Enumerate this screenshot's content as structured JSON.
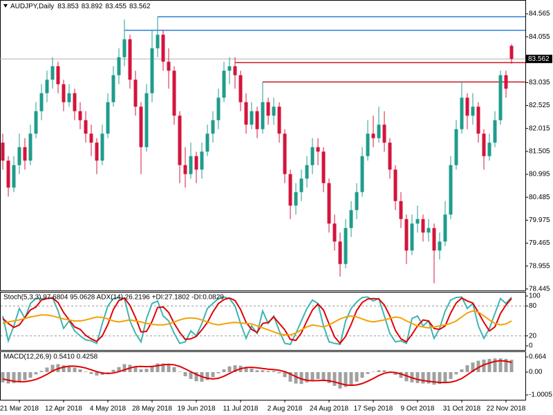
{
  "chart_data": [
    {
      "type": "candlestick",
      "title": "AUDJPY,Daily",
      "categories": [
        null,
        null,
        null,
        "21 Mar 2018",
        null,
        null,
        null,
        null,
        null,
        null,
        null,
        "12 Apr 2018",
        null,
        null,
        null,
        null,
        null,
        null,
        null,
        "4 May 2018",
        null,
        null,
        null,
        null,
        null,
        null,
        null,
        "28 May 2018",
        null,
        null,
        null,
        null,
        null,
        null,
        null,
        "19 Jun 2018",
        null,
        null,
        null,
        null,
        null,
        null,
        null,
        "11 Jul 2018",
        null,
        null,
        null,
        null,
        null,
        null,
        null,
        "2 Aug 2018",
        null,
        null,
        null,
        null,
        null,
        null,
        null,
        "24 Aug 2018",
        null,
        null,
        null,
        null,
        null,
        null,
        null,
        "17 Sep 2018",
        null,
        null,
        null,
        null,
        null,
        null,
        null,
        "9 Oct 2018",
        null,
        null,
        null,
        null,
        null,
        null,
        null,
        "31 Oct 2018",
        null,
        null,
        null,
        null,
        null,
        null,
        null,
        "22 Nov 2018",
        null
      ],
      "open": [
        81.7,
        81.3,
        80.7,
        81.2,
        81.6,
        81.3,
        81.9,
        82.4,
        82.8,
        83.1,
        83.4,
        83.0,
        82.6,
        82.8,
        82.4,
        82.2,
        81.9,
        81.7,
        81.3,
        81.9,
        82.6,
        83.2,
        83.6,
        84.0,
        83.1,
        82.5,
        81.6,
        82.8,
        83.8,
        84.1,
        83.5,
        83.3,
        82.3,
        81.2,
        81.0,
        81.4,
        81.1,
        81.5,
        81.9,
        82.2,
        82.7,
        83.3,
        83.4,
        83.2,
        82.6,
        82.1,
        82.4,
        82.0,
        82.6,
        82.3,
        82.5,
        81.9,
        81.0,
        80.3,
        80.6,
        80.9,
        81.2,
        81.6,
        81.5,
        80.8,
        79.9,
        79.5,
        79.0,
        79.8,
        80.2,
        80.6,
        81.4,
        81.9,
        81.8,
        82.1,
        81.7,
        81.1,
        80.4,
        80.0,
        79.3,
        79.9,
        80.0,
        79.7,
        79.8,
        79.3,
        79.5,
        80.1,
        81.2,
        82.0,
        82.7,
        82.3,
        82.5,
        81.9,
        81.4,
        81.7,
        82.2,
        83.2,
        83.853
      ],
      "high": [
        81.9,
        81.4,
        81.4,
        81.9,
        81.8,
        82.1,
        82.6,
        83.0,
        83.3,
        83.6,
        83.5,
        83.1,
        83.0,
        82.9,
        82.6,
        82.4,
        82.1,
        81.8,
        82.1,
        82.8,
        83.4,
        83.8,
        84.44,
        84.1,
        83.3,
        82.6,
        83.0,
        84.2,
        84.5,
        84.2,
        83.8,
        83.4,
        82.4,
        81.6,
        81.7,
        81.5,
        81.7,
        82.1,
        82.4,
        82.9,
        83.5,
        83.6,
        83.6,
        83.3,
        82.8,
        82.6,
        82.5,
        83.05,
        82.7,
        82.7,
        82.6,
        82.0,
        81.1,
        80.8,
        81.1,
        81.4,
        81.8,
        81.8,
        81.6,
        80.9,
        80.1,
        79.7,
        80.0,
        80.4,
        80.8,
        81.6,
        82.2,
        82.3,
        82.5,
        82.4,
        81.8,
        81.2,
        80.6,
        80.1,
        80.1,
        80.3,
        80.1,
        80.0,
        79.9,
        79.7,
        80.4,
        81.4,
        82.2,
        83.05,
        82.8,
        82.8,
        82.6,
        82.0,
        81.9,
        82.4,
        83.3,
        83.3,
        83.892
      ],
      "low": [
        81.1,
        80.5,
        80.6,
        81.0,
        81.1,
        81.2,
        81.8,
        82.2,
        82.6,
        82.9,
        82.8,
        82.4,
        82.5,
        82.2,
        82.0,
        81.7,
        81.4,
        81.0,
        81.2,
        81.8,
        82.5,
        83.0,
        83.4,
        82.9,
        82.3,
        81.0,
        81.5,
        82.6,
        83.6,
        83.3,
        82.9,
        82.1,
        80.8,
        80.7,
        80.9,
        80.8,
        80.9,
        81.4,
        81.7,
        82.0,
        82.6,
        83.0,
        82.9,
        82.4,
        81.9,
        82.0,
        81.8,
        81.9,
        82.1,
        82.1,
        81.7,
        80.8,
        80.0,
        80.1,
        80.4,
        80.7,
        81.0,
        81.2,
        80.6,
        79.7,
        79.3,
        78.72,
        78.9,
        79.6,
        80.0,
        80.5,
        81.3,
        81.6,
        81.7,
        81.5,
        80.9,
        80.2,
        79.8,
        79.0,
        79.2,
        79.7,
        79.5,
        79.5,
        78.57,
        79.1,
        79.4,
        80.0,
        81.1,
        81.9,
        82.0,
        82.1,
        81.7,
        81.1,
        81.3,
        81.6,
        82.1,
        82.7,
        83.455
      ],
      "close": [
        81.3,
        80.7,
        81.2,
        81.6,
        81.3,
        81.9,
        82.4,
        82.8,
        83.1,
        83.4,
        83.0,
        82.6,
        82.8,
        82.4,
        82.2,
        81.9,
        81.7,
        81.3,
        81.9,
        82.6,
        83.2,
        83.6,
        84.0,
        83.1,
        82.5,
        81.6,
        82.8,
        83.8,
        84.1,
        83.5,
        83.3,
        82.3,
        81.2,
        81.0,
        81.4,
        81.1,
        81.5,
        81.9,
        82.2,
        82.7,
        83.3,
        83.4,
        83.2,
        82.6,
        82.1,
        82.4,
        82.0,
        82.6,
        82.3,
        82.5,
        81.9,
        81.0,
        80.3,
        80.6,
        80.9,
        81.2,
        81.6,
        81.5,
        80.8,
        79.9,
        79.5,
        79.0,
        79.8,
        80.2,
        80.6,
        81.4,
        81.9,
        81.8,
        82.1,
        81.7,
        81.1,
        80.4,
        80.0,
        79.3,
        79.9,
        80.0,
        79.7,
        79.8,
        79.3,
        79.5,
        80.1,
        81.2,
        82.0,
        82.7,
        82.3,
        82.5,
        81.9,
        81.4,
        81.7,
        82.2,
        83.2,
        82.9,
        83.562
      ],
      "up_color": "#1f9c8c",
      "down_color": "#d4143c",
      "ylim": [
        78.411,
        84.873
      ],
      "yticks": [
        84.565,
        84.055,
        83.035,
        82.525,
        82.015,
        81.505,
        80.995,
        80.485,
        79.975,
        79.465,
        78.955,
        78.445
      ],
      "hlines": [
        {
          "value": 84.5,
          "color": "#2a7fd4",
          "from": 28
        },
        {
          "value": 84.2,
          "color": "#2a7fd4",
          "from": 22
        },
        {
          "value": 83.48,
          "color": "#c8141e",
          "from": 42
        },
        {
          "value": 83.05,
          "color": "#c8141e",
          "from": 47
        }
      ]
    },
    {
      "type": "line",
      "label": "Stoch(5,3,3) 97.6804 95.0628  ADX(14) 26.2196 +DI:27.1802 -DI:0.0829",
      "series": [
        {
          "color": "#3cb4b4",
          "values": [
            60,
            10,
            40,
            75,
            55,
            85,
            95,
            95,
            95,
            97,
            70,
            35,
            50,
            30,
            20,
            12,
            10,
            5,
            45,
            80,
            95,
            97,
            95,
            50,
            25,
            8,
            55,
            85,
            90,
            60,
            50,
            25,
            5,
            8,
            30,
            20,
            45,
            75,
            85,
            95,
            98,
            95,
            80,
            45,
            15,
            40,
            25,
            70,
            45,
            60,
            30,
            5,
            3,
            25,
            50,
            75,
            92,
            85,
            40,
            8,
            5,
            3,
            50,
            75,
            88,
            97,
            98,
            90,
            95,
            60,
            25,
            8,
            10,
            5,
            55,
            60,
            40,
            50,
            15,
            35,
            70,
            92,
            97,
            98,
            75,
            85,
            40,
            15,
            35,
            65,
            95,
            85,
            97.68
          ]
        },
        {
          "color": "#e00000",
          "values": [
            55,
            45,
            37,
            42,
            57,
            72,
            78,
            92,
            95,
            96,
            87,
            67,
            52,
            38,
            33,
            21,
            14,
            9,
            20,
            43,
            73,
            91,
            96,
            81,
            57,
            28,
            29,
            49,
            77,
            78,
            67,
            45,
            27,
            13,
            14,
            19,
            32,
            47,
            68,
            85,
            93,
            96,
            91,
            73,
            47,
            33,
            27,
            45,
            47,
            58,
            45,
            32,
            13,
            11,
            26,
            50,
            72,
            84,
            72,
            44,
            18,
            5,
            19,
            43,
            71,
            87,
            94,
            95,
            94,
            82,
            60,
            31,
            14,
            8,
            23,
            40,
            52,
            50,
            35,
            33,
            40,
            66,
            86,
            96,
            90,
            86,
            67,
            47,
            30,
            38,
            65,
            82,
            95.06
          ]
        },
        {
          "color": "#f5a000",
          "values": [
            45,
            48,
            50,
            52,
            55,
            58,
            60,
            62,
            62,
            60,
            57,
            54,
            52,
            50,
            50,
            52,
            55,
            58,
            57,
            54,
            50,
            48,
            50,
            52,
            50,
            48,
            45,
            43,
            42,
            42,
            44,
            48,
            52,
            55,
            56,
            55,
            52,
            48,
            44,
            42,
            44,
            46,
            47,
            46,
            45,
            44,
            40,
            36,
            32,
            28,
            24,
            22,
            22,
            26,
            32,
            38,
            42,
            40,
            38,
            42,
            48,
            54,
            58,
            60,
            58,
            54,
            50,
            48,
            50,
            52,
            55,
            58,
            56,
            50,
            45,
            40,
            38,
            36,
            38,
            40,
            42,
            45,
            50,
            58,
            66,
            70,
            68,
            60,
            52,
            45,
            42,
            44,
            50
          ]
        }
      ],
      "levels": [
        80,
        20
      ],
      "ylim": [
        -8.3,
        108.3
      ],
      "yticks": [
        100,
        80,
        20,
        0
      ]
    },
    {
      "type": "macd",
      "label": "MACD(12,26,9) 0.5410 0.4258",
      "values": [
        -0.45,
        -0.5,
        -0.48,
        -0.4,
        -0.35,
        -0.25,
        -0.1,
        0.05,
        0.2,
        0.32,
        0.35,
        0.3,
        0.25,
        0.2,
        0.12,
        0.02,
        -0.08,
        -0.15,
        -0.12,
        -0.02,
        0.1,
        0.22,
        0.35,
        0.32,
        0.25,
        0.12,
        0.15,
        0.25,
        0.38,
        0.38,
        0.34,
        0.22,
        0.02,
        -0.18,
        -0.3,
        -0.4,
        -0.42,
        -0.35,
        -0.22,
        -0.05,
        0.12,
        0.25,
        0.3,
        0.28,
        0.2,
        0.15,
        0.08,
        0.08,
        0.05,
        0.05,
        -0.05,
        -0.22,
        -0.42,
        -0.5,
        -0.52,
        -0.45,
        -0.35,
        -0.3,
        -0.35,
        -0.48,
        -0.6,
        -0.72,
        -0.65,
        -0.55,
        -0.42,
        -0.25,
        -0.08,
        0.02,
        0.08,
        0.08,
        0.0,
        -0.12,
        -0.25,
        -0.4,
        -0.45,
        -0.48,
        -0.5,
        -0.5,
        -0.55,
        -0.52,
        -0.45,
        -0.3,
        -0.1,
        0.12,
        0.3,
        0.42,
        0.5,
        0.55,
        0.58,
        0.6,
        0.6,
        0.58,
        0.541
      ],
      "color": "#a0a0a0",
      "signal": {
        "color": "#e00000",
        "values": [
          -0.3,
          -0.35,
          -0.4,
          -0.42,
          -0.42,
          -0.38,
          -0.32,
          -0.22,
          -0.1,
          0.05,
          0.15,
          0.22,
          0.26,
          0.26,
          0.23,
          0.18,
          0.1,
          0.02,
          -0.04,
          -0.06,
          -0.04,
          0.02,
          0.1,
          0.18,
          0.24,
          0.25,
          0.24,
          0.25,
          0.28,
          0.32,
          0.34,
          0.32,
          0.25,
          0.14,
          0.02,
          -0.1,
          -0.2,
          -0.27,
          -0.3,
          -0.27,
          -0.18,
          -0.06,
          0.06,
          0.15,
          0.2,
          0.21,
          0.19,
          0.16,
          0.13,
          0.11,
          0.08,
          0.02,
          -0.08,
          -0.2,
          -0.3,
          -0.36,
          -0.38,
          -0.37,
          -0.36,
          -0.38,
          -0.43,
          -0.5,
          -0.56,
          -0.58,
          -0.56,
          -0.5,
          -0.4,
          -0.28,
          -0.15,
          -0.05,
          0.0,
          -0.02,
          -0.08,
          -0.16,
          -0.25,
          -0.32,
          -0.37,
          -0.4,
          -0.43,
          -0.45,
          -0.46,
          -0.44,
          -0.38,
          -0.28,
          -0.12,
          0.05,
          0.2,
          0.32,
          0.4,
          0.47,
          0.5,
          0.48,
          0.4258
        ]
      },
      "ylim": [
        -1.212,
        0.909
      ],
      "yticks": [
        0.664,
        {
          "value": 0,
          "label": "0.00"
        },
        -1.0005
      ]
    }
  ]
}
